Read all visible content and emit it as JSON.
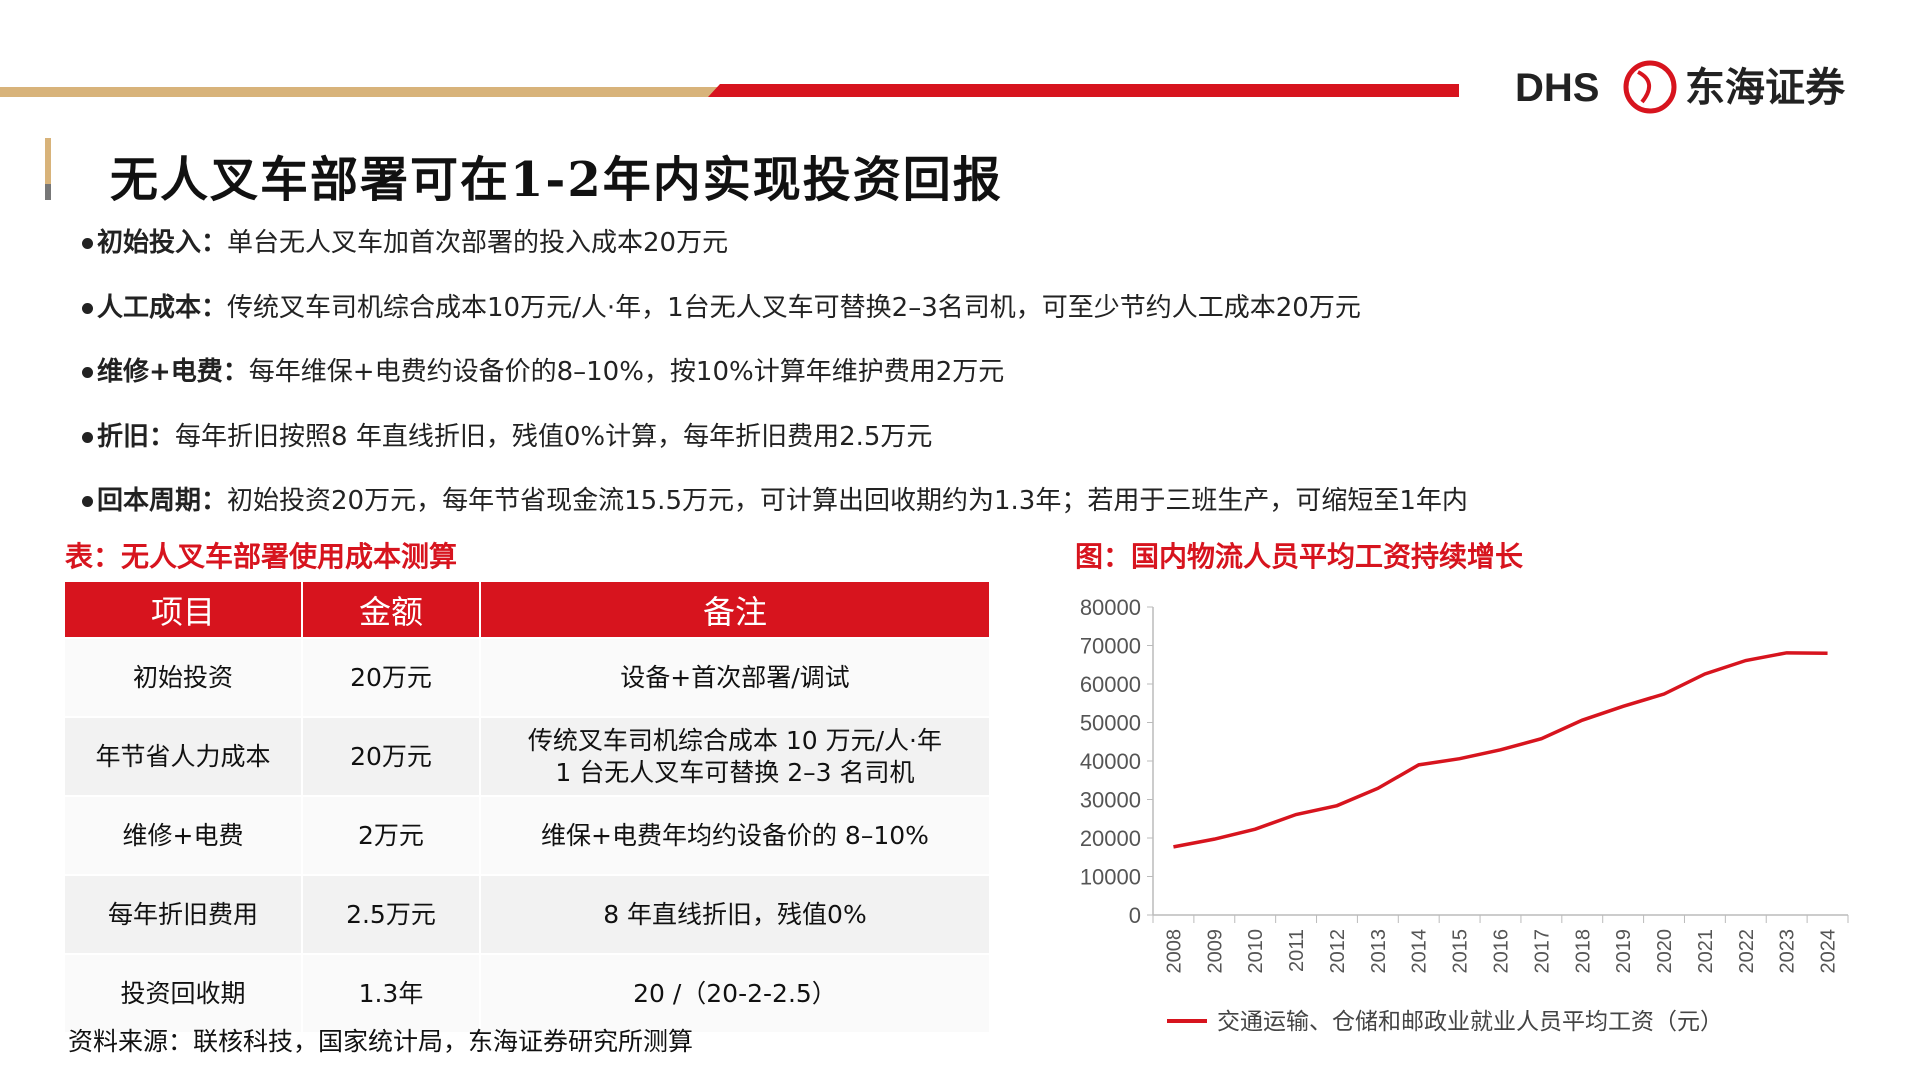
{
  "header": {
    "logo_en": "DHS",
    "logo_cn": "东海证券",
    "title": "无人叉车部署可在1-2年内实现投资回报"
  },
  "bullets": [
    {
      "label": "初始投入：",
      "text": "单台无人叉车加首次部署的投入成本20万元"
    },
    {
      "label": "人工成本：",
      "text": "传统叉车司机综合成本10万元/人·年，1台无人叉车可替换2–3名司机，可至少节约人工成本20万元"
    },
    {
      "label": "维修+电费：",
      "text": "每年维保+电费约设备价的8–10%，按10%计算年维护费用2万元"
    },
    {
      "label": "折旧：",
      "text": "每年折旧按照8 年直线折旧，残值0%计算，每年折旧费用2.5万元"
    },
    {
      "label": "回本周期：",
      "text": "初始投资20万元，每年节省现金流15.5万元，可计算出回收期约为1.3年；若用于三班生产，可缩短至1年内"
    }
  ],
  "table": {
    "title": "表：无人叉车部署使用成本测算",
    "header": [
      "项目",
      "金额",
      "备注"
    ],
    "rows": [
      [
        [
          "初始投资"
        ],
        [
          "20万元"
        ],
        [
          "设备+首次部署/调试"
        ]
      ],
      [
        [
          "年节省人力成本"
        ],
        [
          "20万元"
        ],
        [
          "传统叉车司机综合成本 10 万元/人·年",
          "1 台无人叉车可替换 2–3 名司机"
        ]
      ],
      [
        [
          "维修+电费"
        ],
        [
          "2万元"
        ],
        [
          "维保+电费年均约设备价的 8–10%"
        ]
      ],
      [
        [
          "每年折旧费用"
        ],
        [
          "2.5万元"
        ],
        [
          "8 年直线折旧，残值0%"
        ]
      ],
      [
        [
          "投资回收期"
        ],
        [
          "1.3年"
        ],
        [
          "20 /（20-2-2.5）"
        ]
      ]
    ],
    "source": "资料来源：联核科技，国家统计局，东海证券研究所测算"
  },
  "chart_data": {
    "type": "line",
    "title": "图：国内物流人员平均工资持续增长",
    "categories": [
      "2008",
      "2009",
      "2010",
      "2011",
      "2012",
      "2013",
      "2014",
      "2015",
      "2016",
      "2017",
      "2018",
      "2019",
      "2020",
      "2021",
      "2022",
      "2023",
      "2024"
    ],
    "series": [
      {
        "name": "交通运输、仓储和邮政业就业人员平均工资（元）",
        "color": "#d7141e",
        "values": [
          17700,
          19700,
          22300,
          26100,
          28400,
          32900,
          39000,
          40600,
          42900,
          45800,
          50600,
          54200,
          57400,
          62600,
          66100,
          68100,
          68000
        ]
      }
    ],
    "ylim": [
      0,
      80000
    ],
    "yticks": [
      0,
      10000,
      20000,
      30000,
      40000,
      50000,
      60000,
      70000,
      80000
    ],
    "grid": false,
    "legend": "bottom"
  }
}
